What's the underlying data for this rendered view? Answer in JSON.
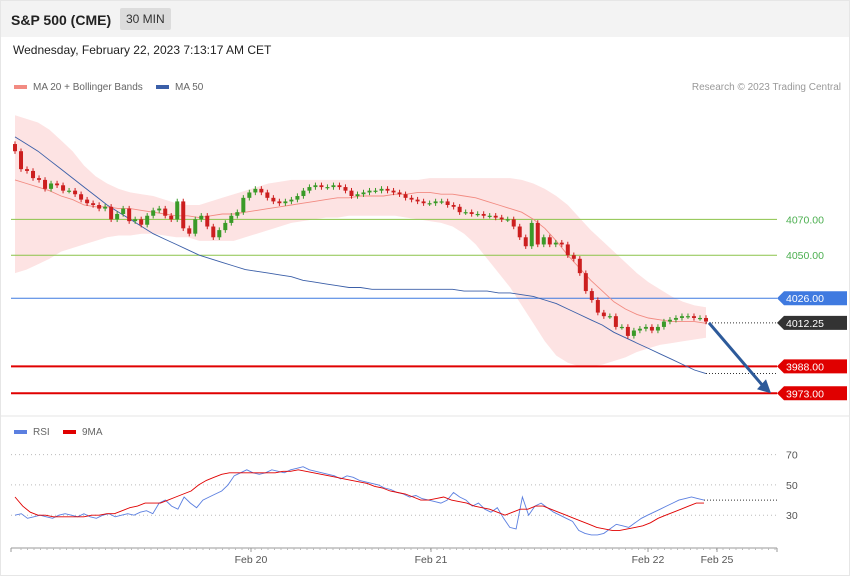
{
  "header": {
    "instrument": "S&P 500 (CME)",
    "timeframe": "30 MIN",
    "datetime": "Wednesday, February 22, 2023 7:13:17 AM CET"
  },
  "legend": {
    "ma20": "MA 20 + Bollinger Bands",
    "ma50": "MA 50",
    "credit": "Research © 2023 Trading Central",
    "rsi": "RSI",
    "rsi_ma": "9MA"
  },
  "colors": {
    "band_fill": "#fde3e3",
    "ma20": "#f28b82",
    "ma50": "#3b5fa8",
    "support_green": "#8bc34a",
    "support_green_text": "#4caf50",
    "resistance_blue": "#3f7ae0",
    "target_red": "#e00000",
    "price_dark": "#333333",
    "arrow": "#2d5a9a",
    "candle_green": "#3a9a28",
    "candle_red": "#cc1f1f",
    "rsi": "#5b7fe0",
    "rsi_ma": "#e00000"
  },
  "chart_data": [
    {
      "type": "candlestick",
      "title": "",
      "ylim": [
        3962,
        4136
      ],
      "levels": [
        {
          "value": 4070.0,
          "label": "4070.00",
          "style": "green-line"
        },
        {
          "value": 4050.0,
          "label": "4050.00",
          "style": "green-line"
        },
        {
          "value": 4026.0,
          "label": "4026.00",
          "style": "blue-line"
        },
        {
          "value": 4012.25,
          "label": "4012.25",
          "style": "last-price"
        },
        {
          "value": 3988.0,
          "label": "3988.00",
          "style": "red-line"
        },
        {
          "value": 3973.0,
          "label": "3973.00",
          "style": "red-line"
        }
      ],
      "projection": {
        "from": 4012.25,
        "to": 3973.0,
        "direction": "down"
      },
      "closes": [
        4108,
        4098,
        4097,
        4093,
        4092,
        4087,
        4090,
        4089,
        4086,
        4086,
        4084,
        4081,
        4079,
        4078,
        4076,
        4077,
        4070,
        4073,
        4076,
        4069,
        4070,
        4067,
        4072,
        4075,
        4076,
        4072,
        4070,
        4080,
        4065,
        4062,
        4070,
        4072,
        4066,
        4060,
        4064,
        4068,
        4072,
        4074,
        4082,
        4085,
        4087,
        4085,
        4082,
        4080,
        4079,
        4080,
        4081,
        4083,
        4086,
        4088,
        4089,
        4088,
        4088,
        4089,
        4088,
        4086,
        4083,
        4084,
        4085,
        4086,
        4086,
        4087,
        4086,
        4085,
        4084,
        4082,
        4081,
        4080,
        4079,
        4079,
        4080,
        4080,
        4078,
        4077,
        4074,
        4074,
        4073,
        4073,
        4072,
        4072,
        4071,
        4070,
        4070,
        4066,
        4060,
        4055,
        4068,
        4056,
        4060,
        4056,
        4057,
        4056,
        4050,
        4048,
        4040,
        4030,
        4025,
        4018,
        4016,
        4016,
        4010,
        4010,
        4005,
        4008,
        4009,
        4010,
        4008,
        4010,
        4013,
        4014,
        4015,
        4016,
        4016,
        4015,
        4015,
        4013
      ],
      "ma20": [
        4092,
        4090,
        4088,
        4086,
        4083,
        4081,
        4078,
        4077,
        4077,
        4076,
        4076,
        4075,
        4074,
        4073,
        4072,
        4072,
        4071,
        4072,
        4073,
        4073,
        4074,
        4075,
        4076,
        4077,
        4078,
        4079,
        4080,
        4081,
        4082,
        4082,
        4083,
        4083,
        4083,
        4084,
        4084,
        4085,
        4085,
        4084,
        4084,
        4083,
        4082,
        4080,
        4078,
        4076,
        4074,
        4070,
        4065,
        4058,
        4050,
        4043,
        4036,
        4030,
        4024,
        4020,
        4017,
        4015,
        4014,
        4013,
        4013,
        4013,
        4012
      ],
      "ma50": [
        4116,
        4112,
        4108,
        4103,
        4098,
        4093,
        4088,
        4083,
        4078,
        4074,
        4070,
        4066,
        4062,
        4059,
        4056,
        4053,
        4050,
        4048,
        4046,
        4044,
        4042,
        4041,
        4040,
        4039,
        4038,
        4036,
        4035,
        4034,
        4033,
        4032,
        4032,
        4031,
        4031,
        4031,
        4031,
        4031,
        4031,
        4031,
        4031,
        4030,
        4030,
        4030,
        4029,
        4029,
        4028,
        4027,
        4025,
        4023,
        4020,
        4017,
        4014,
        4011,
        4007,
        4004,
        4001,
        3998,
        3995,
        3992,
        3989,
        3986,
        3984
      ],
      "bb_upper": [
        4128,
        4126,
        4124,
        4120,
        4114,
        4108,
        4100,
        4094,
        4090,
        4087,
        4085,
        4084,
        4083,
        4081,
        4079,
        4078,
        4078,
        4080,
        4082,
        4084,
        4086,
        4088,
        4090,
        4091,
        4092,
        4092,
        4092,
        4092,
        4092,
        4092,
        4092,
        4092,
        4092,
        4092,
        4092,
        4092,
        4093,
        4093,
        4093,
        4093,
        4093,
        4093,
        4093,
        4093,
        4092,
        4090,
        4087,
        4083,
        4078,
        4071,
        4064,
        4058,
        4052,
        4046,
        4040,
        4035,
        4031,
        4027,
        4024,
        4022,
        4021
      ],
      "bb_lower": [
        4040,
        4042,
        4045,
        4048,
        4052,
        4054,
        4056,
        4058,
        4060,
        4061,
        4061,
        4062,
        4062,
        4061,
        4060,
        4060,
        4058,
        4058,
        4058,
        4058,
        4060,
        4062,
        4064,
        4066,
        4068,
        4069,
        4070,
        4071,
        4071,
        4072,
        4072,
        4072,
        4072,
        4072,
        4071,
        4070,
        4069,
        4068,
        4066,
        4062,
        4056,
        4048,
        4040,
        4032,
        4022,
        4012,
        4002,
        3994,
        3990,
        3988,
        3988,
        3989,
        3991,
        3993,
        3996,
        3998,
        4000,
        4001,
        4002,
        4003,
        4004
      ]
    },
    {
      "type": "line",
      "title": "",
      "ylim": [
        13,
        77
      ],
      "ticks": [
        70,
        50,
        30
      ],
      "xticks": [
        "Feb 20",
        "Feb 21",
        "Feb 22",
        "Feb 25"
      ],
      "series": [
        {
          "name": "RSI",
          "values": [
            30,
            31,
            28,
            29,
            30,
            29,
            28,
            30,
            31,
            30,
            29,
            31,
            29,
            28,
            30,
            31,
            29,
            30,
            31,
            30,
            32,
            33,
            31,
            38,
            40,
            36,
            34,
            42,
            38,
            35,
            40,
            42,
            44,
            46,
            50,
            56,
            58,
            60,
            58,
            57,
            58,
            60,
            59,
            58,
            60,
            61,
            62,
            60,
            59,
            58,
            57,
            56,
            54,
            56,
            55,
            53,
            52,
            51,
            50,
            48,
            47,
            45,
            44,
            42,
            43,
            41,
            40,
            39,
            38,
            40,
            45,
            42,
            40,
            36,
            38,
            34,
            32,
            35,
            28,
            22,
            21,
            42,
            30,
            36,
            38,
            35,
            32,
            30,
            28,
            26,
            20,
            18,
            17,
            17,
            18,
            21,
            24,
            23,
            22,
            25,
            28,
            30,
            32,
            34,
            36,
            38,
            40,
            41,
            42,
            41,
            40
          ]
        },
        {
          "name": "9MA",
          "values": [
            42,
            36,
            32,
            30,
            30,
            29,
            29,
            29,
            29,
            29,
            30,
            30,
            31,
            31,
            33,
            35,
            36,
            38,
            38,
            38,
            40,
            42,
            44,
            46,
            50,
            53,
            55,
            57,
            58,
            58,
            58,
            58,
            58,
            58,
            58,
            59,
            59,
            60,
            59,
            58,
            57,
            56,
            55,
            54,
            53,
            52,
            51,
            49,
            48,
            46,
            45,
            44,
            42,
            40,
            40,
            41,
            42,
            40,
            39,
            38,
            36,
            35,
            34,
            32,
            30,
            32,
            34,
            34,
            36,
            36,
            34,
            32,
            30,
            28,
            26,
            24,
            22,
            21,
            20,
            20,
            21,
            22,
            23,
            25,
            28,
            30,
            32,
            34,
            36,
            38,
            38
          ]
        }
      ]
    }
  ]
}
